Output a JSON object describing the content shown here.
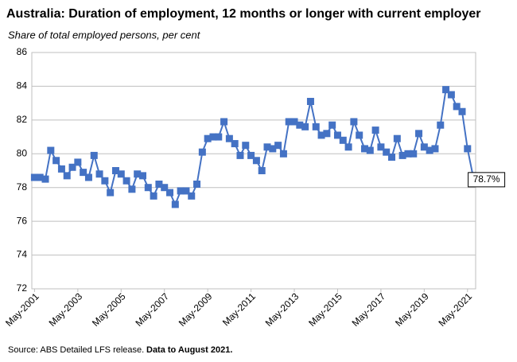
{
  "chart_data": {
    "type": "line",
    "title": "Australia: Duration of employment, 12 months or longer with current employer",
    "subtitle": "Share of total employed persons, per cent",
    "source": "Source: ABS Detailed LFS release.",
    "note": "Data to August 2021.",
    "categories": [
      "May-2001",
      null,
      null,
      null,
      null,
      null,
      null,
      null,
      "May-2003",
      null,
      null,
      null,
      null,
      null,
      null,
      null,
      "May-2005",
      null,
      null,
      null,
      null,
      null,
      null,
      null,
      "May-2007",
      null,
      null,
      null,
      null,
      null,
      null,
      null,
      "May-2009",
      null,
      null,
      null,
      null,
      null,
      null,
      null,
      "May-2011",
      null,
      null,
      null,
      null,
      null,
      null,
      null,
      "May-2013",
      null,
      null,
      null,
      null,
      null,
      null,
      null,
      "May-2015",
      null,
      null,
      null,
      null,
      null,
      null,
      null,
      "May-2017",
      null,
      null,
      null,
      null,
      null,
      null,
      null,
      "May-2019",
      null,
      null,
      null,
      null,
      null,
      null,
      null,
      "May-2021",
      null
    ],
    "series": [
      {
        "color": "#4472c4",
        "values": [
          78.6,
          78.6,
          78.5,
          80.2,
          79.6,
          79.1,
          78.7,
          79.2,
          79.5,
          78.9,
          78.6,
          79.9,
          78.8,
          78.4,
          77.7,
          79.0,
          78.8,
          78.4,
          77.9,
          78.8,
          78.7,
          78.0,
          77.5,
          78.2,
          78.0,
          77.7,
          77.0,
          77.8,
          77.8,
          77.5,
          78.2,
          80.1,
          80.9,
          81.0,
          81.0,
          81.9,
          80.9,
          80.6,
          79.9,
          80.5,
          79.9,
          79.6,
          79.0,
          80.4,
          80.3,
          80.5,
          80.0,
          81.9,
          81.9,
          81.7,
          81.6,
          83.1,
          81.6,
          81.1,
          81.2,
          81.7,
          81.1,
          80.8,
          80.4,
          81.9,
          81.1,
          80.3,
          80.2,
          81.4,
          80.4,
          80.1,
          79.8,
          80.9,
          79.9,
          80.0,
          80.0,
          81.2,
          80.4,
          80.2,
          80.3,
          81.7,
          83.8,
          83.5,
          82.8,
          82.5,
          80.3,
          78.7
        ],
        "value_labels": [
          null,
          null,
          null,
          null,
          null,
          null,
          null,
          null,
          null,
          null,
          null,
          null,
          null,
          null,
          null,
          null,
          null,
          null,
          null,
          null,
          null,
          null,
          null,
          null,
          null,
          null,
          null,
          null,
          null,
          null,
          null,
          null,
          null,
          null,
          null,
          null,
          null,
          null,
          null,
          null,
          null,
          null,
          null,
          null,
          null,
          null,
          null,
          null,
          null,
          null,
          null,
          null,
          null,
          null,
          null,
          null,
          null,
          null,
          null,
          null,
          null,
          null,
          null,
          null,
          null,
          null,
          null,
          null,
          null,
          null,
          null,
          null,
          null,
          null,
          null,
          null,
          null,
          null,
          null,
          null,
          null,
          "78.7%"
        ]
      }
    ],
    "ylim": [
      72,
      86
    ],
    "yticks": [
      72,
      74,
      76,
      78,
      80,
      82,
      84,
      86
    ],
    "grid": true
  }
}
